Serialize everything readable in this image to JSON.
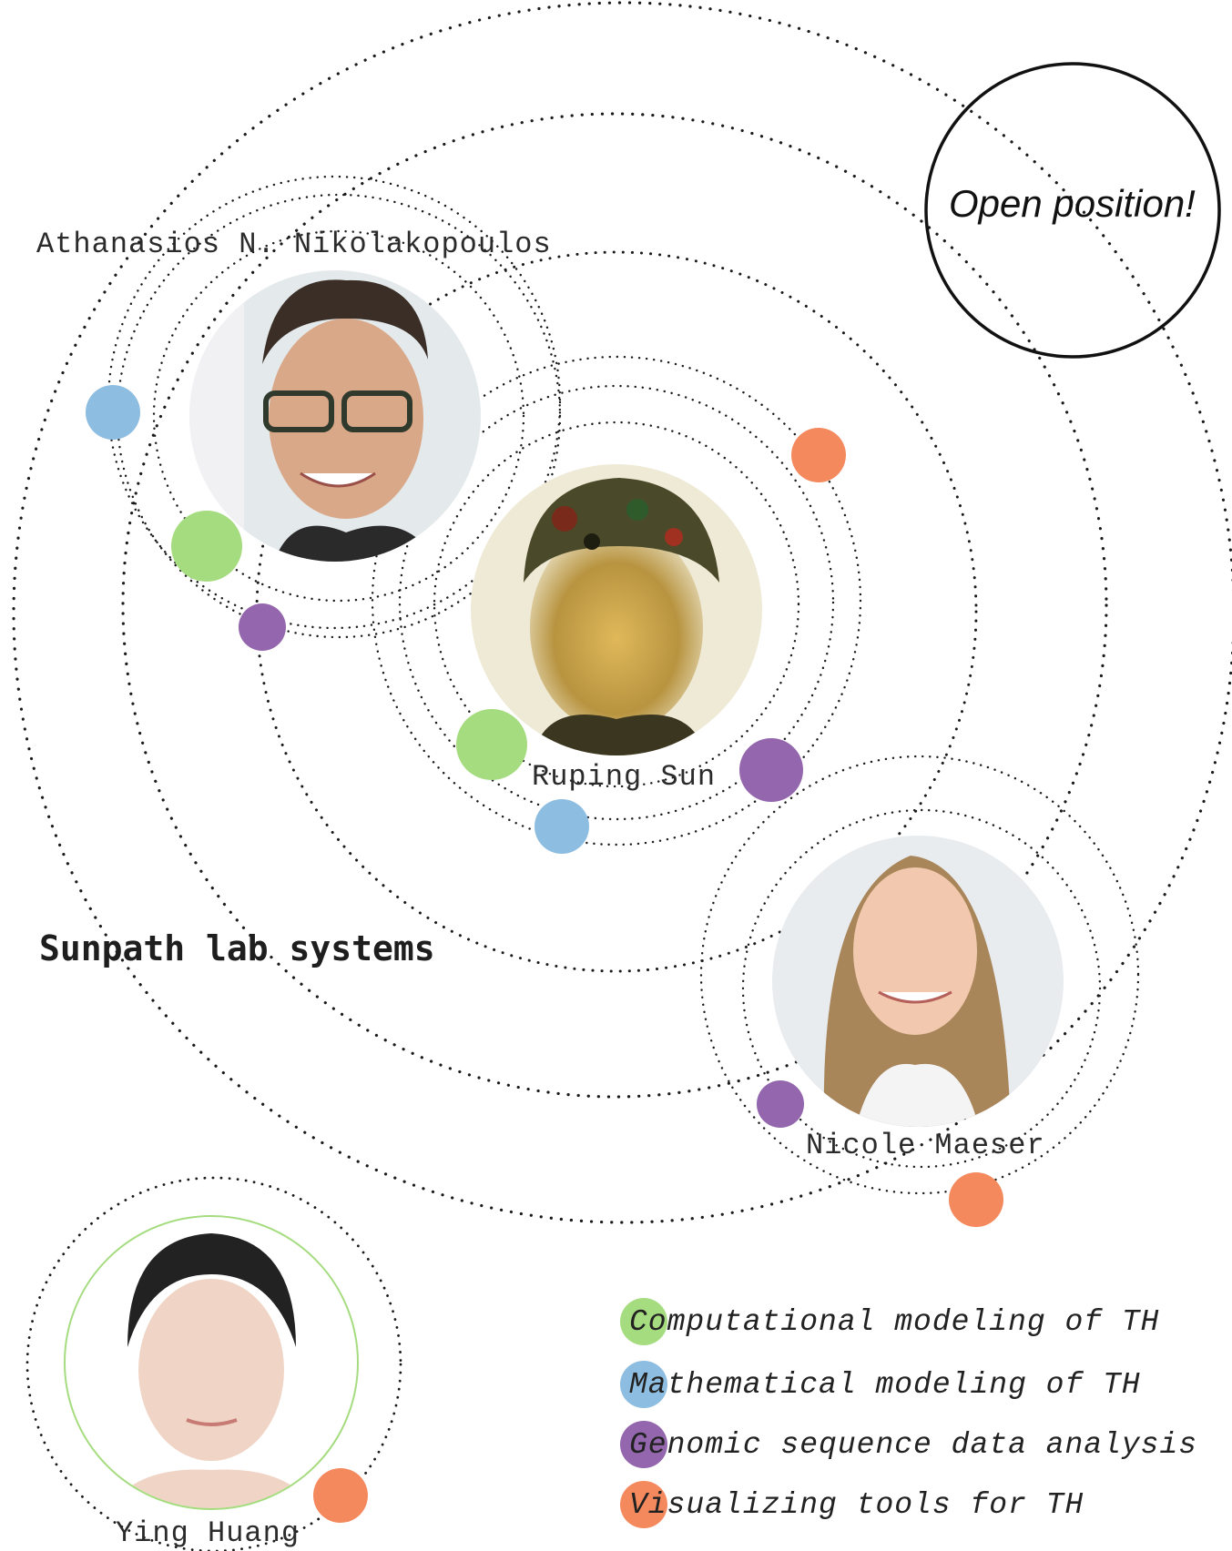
{
  "title": "Sunpath lab systems",
  "open_position": "Open position!",
  "members": [
    {
      "name": "Athanasios N. Nikolakopoulos"
    },
    {
      "name": "Ruping Sun"
    },
    {
      "name": "Nicole Maeser"
    },
    {
      "name": "Ying Huang"
    }
  ],
  "legend": [
    {
      "label": "Computational modeling of TH",
      "color": "#a6dc80"
    },
    {
      "label": "Mathematical modeling of TH",
      "color": "#8dbde0"
    },
    {
      "label": "Genomic sequence data analysis",
      "color": "#9466ad"
    },
    {
      "label": "Visualizing tools for TH",
      "color": "#f4895e"
    }
  ],
  "colors": {
    "computational": "#a6dc80",
    "mathematical": "#8dbde0",
    "genomic": "#9466ad",
    "visualizing": "#f4895e",
    "orbit": "#1a1a1a"
  },
  "icons": {
    "portrait": "person-portrait-icon"
  }
}
